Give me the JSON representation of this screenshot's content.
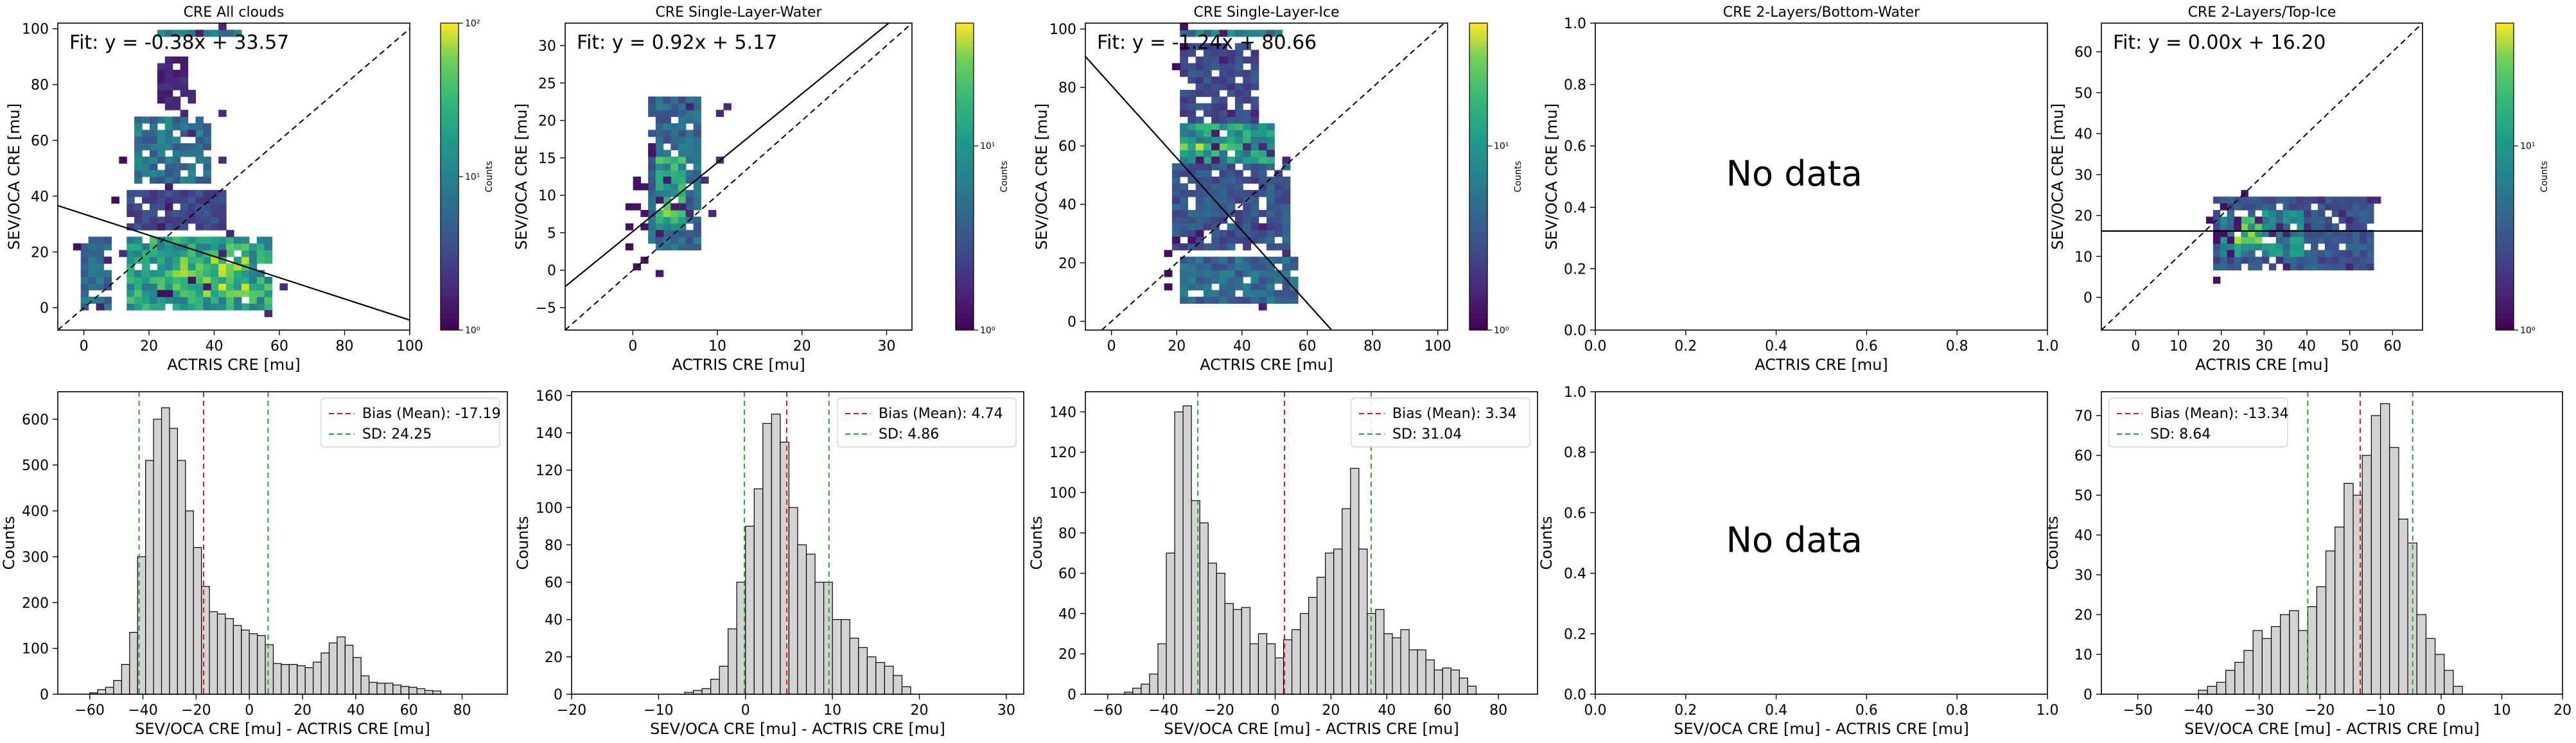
{
  "chart_data": [
    {
      "type": "heatmap",
      "title": "CRE All clouds",
      "xlabel": "ACTRIS CRE [mu]",
      "ylabel": "SEV/OCA CRE [mu]",
      "xlim": [
        -8,
        100
      ],
      "ylim": [
        -8,
        102
      ],
      "xticks": [
        0,
        20,
        40,
        60,
        80,
        100
      ],
      "yticks": [
        0,
        20,
        40,
        60,
        80,
        100
      ],
      "fit_label": "Fit: y = -0.38x + 33.57",
      "fit": {
        "slope": -0.38,
        "intercept": 33.57
      },
      "one_to_one": true,
      "colorbar": {
        "label": "Counts",
        "ticks": [
          "10⁰",
          "10¹",
          "10²"
        ],
        "scale": "log"
      },
      "density_blobs": [
        {
          "x": [
            -1,
            9
          ],
          "y": [
            0,
            25
          ],
          "level": 0.5
        },
        {
          "x": [
            13,
            58
          ],
          "y": [
            0,
            25
          ],
          "level": 0.8
        },
        {
          "x": [
            27,
            50
          ],
          "y": [
            5,
            18
          ],
          "level": 1.0
        },
        {
          "x": [
            15,
            40
          ],
          "y": [
            45,
            68
          ],
          "level": 0.55
        },
        {
          "x": [
            12,
            44
          ],
          "y": [
            29,
            43
          ],
          "level": 0.35
        },
        {
          "x": [
            22,
            32
          ],
          "y": [
            72,
            90
          ],
          "level": 0.2
        },
        {
          "x": [
            22,
            48
          ],
          "y": [
            98,
            100
          ],
          "level": 0.6
        }
      ]
    },
    {
      "type": "heatmap",
      "title": "CRE Single-Layer-Water",
      "xlabel": "ACTRIS CRE [mu]",
      "ylabel": "SEV/OCA CRE [mu]",
      "xlim": [
        -8,
        33
      ],
      "ylim": [
        -8,
        33
      ],
      "xticks": [
        0,
        10,
        20,
        30
      ],
      "yticks": [
        -5,
        0,
        5,
        10,
        15,
        20,
        25,
        30
      ],
      "fit_label": "Fit: y = 0.92x + 5.17",
      "fit": {
        "slope": 0.92,
        "intercept": 5.17
      },
      "one_to_one": true,
      "colorbar": {
        "label": "Counts",
        "ticks": [
          "10⁰",
          "10¹"
        ],
        "scale": "log"
      },
      "density_blobs": [
        {
          "x": [
            2,
            8
          ],
          "y": [
            3,
            23
          ],
          "level": 0.5
        },
        {
          "x": [
            2.5,
            6.5
          ],
          "y": [
            5,
            15
          ],
          "level": 0.8
        },
        {
          "x": [
            2.5,
            4.5
          ],
          "y": [
            6,
            10
          ],
          "level": 1.0
        }
      ]
    },
    {
      "type": "heatmap",
      "title": "CRE Single-Layer-Ice",
      "xlabel": "ACTRIS CRE [mu]",
      "ylabel": "SEV/OCA CRE [mu]",
      "xlim": [
        -8,
        103
      ],
      "ylim": [
        -3,
        102
      ],
      "xticks": [
        0,
        20,
        40,
        60,
        80,
        100
      ],
      "yticks": [
        0,
        20,
        40,
        60,
        80,
        100
      ],
      "fit_label": "Fit: y = -1.24x + 80.66",
      "fit": {
        "slope": -1.24,
        "intercept": 80.66
      },
      "one_to_one": true,
      "colorbar": {
        "label": "Counts",
        "ticks": [
          "10⁰",
          "10¹"
        ],
        "scale": "log"
      },
      "density_blobs": [
        {
          "x": [
            20,
            58
          ],
          "y": [
            5,
            22
          ],
          "level": 0.5
        },
        {
          "x": [
            18,
            55
          ],
          "y": [
            25,
            55
          ],
          "level": 0.4
        },
        {
          "x": [
            22,
            50
          ],
          "y": [
            55,
            68
          ],
          "level": 0.75
        },
        {
          "x": [
            22,
            40
          ],
          "y": [
            58,
            62
          ],
          "level": 1.0
        },
        {
          "x": [
            22,
            44
          ],
          "y": [
            68,
            95
          ],
          "level": 0.35
        },
        {
          "x": [
            22,
            52
          ],
          "y": [
            98,
            100
          ],
          "level": 0.6
        }
      ]
    },
    {
      "type": "heatmap",
      "title": "CRE 2-Layers/Bottom-Water",
      "xlabel": "ACTRIS CRE [mu]",
      "ylabel": "SEV/OCA CRE [mu]",
      "xlim": [
        0,
        1
      ],
      "ylim": [
        0,
        1
      ],
      "xticks": [
        0.0,
        0.2,
        0.4,
        0.6,
        0.8,
        1.0
      ],
      "yticks": [
        0.0,
        0.2,
        0.4,
        0.6,
        0.8,
        1.0
      ],
      "message": "No data"
    },
    {
      "type": "heatmap",
      "title": "CRE 2-Layers/Top-Ice",
      "xlabel": "ACTRIS CRE [mu]",
      "ylabel": "SEV/OCA CRE [mu]",
      "xlim": [
        -8,
        67
      ],
      "ylim": [
        -8,
        67
      ],
      "xticks": [
        0,
        10,
        20,
        30,
        40,
        50,
        60
      ],
      "yticks": [
        0,
        10,
        20,
        30,
        40,
        50,
        60
      ],
      "fit_label": "Fit: y = 0.00x + 16.20",
      "fit": {
        "slope": 0.0,
        "intercept": 16.2
      },
      "one_to_one": true,
      "colorbar": {
        "label": "Counts",
        "ticks": [
          "10⁰",
          "10¹"
        ],
        "scale": "log"
      },
      "density_blobs": [
        {
          "x": [
            18,
            55
          ],
          "y": [
            6,
            25
          ],
          "level": 0.4
        },
        {
          "x": [
            20,
            40
          ],
          "y": [
            10,
            21
          ],
          "level": 0.65
        },
        {
          "x": [
            23,
            30
          ],
          "y": [
            13,
            19
          ],
          "level": 0.95
        }
      ]
    },
    {
      "type": "bar",
      "xlabel": "SEV/OCA CRE [mu] - ACTRIS CRE [mu]",
      "ylabel": "Counts",
      "xlim": [
        -72,
        97
      ],
      "ylim": [
        0,
        660
      ],
      "xticks": [
        -60,
        -40,
        -20,
        0,
        20,
        40,
        60,
        80
      ],
      "yticks": [
        0,
        100,
        200,
        300,
        400,
        500,
        600
      ],
      "bin_start": -60,
      "bin_width": 3,
      "values": [
        3,
        10,
        15,
        30,
        65,
        135,
        300,
        510,
        600,
        625,
        580,
        510,
        400,
        320,
        235,
        180,
        175,
        165,
        150,
        140,
        132,
        128,
        108,
        67,
        65,
        65,
        62,
        58,
        70,
        90,
        112,
        125,
        107,
        80,
        40,
        26,
        24,
        24,
        20,
        17,
        15,
        12,
        8,
        7
      ],
      "bias": -17.19,
      "sd": 24.25,
      "legend": [
        "Bias (Mean): -17.19",
        "SD: 24.25"
      ]
    },
    {
      "type": "bar",
      "xlabel": "SEV/OCA CRE [mu] - ACTRIS CRE [mu]",
      "ylabel": "Counts",
      "xlim": [
        -20,
        32
      ],
      "ylim": [
        0,
        162
      ],
      "xticks": [
        -20,
        -10,
        0,
        10,
        20,
        30
      ],
      "yticks": [
        0,
        20,
        40,
        60,
        80,
        100,
        120,
        140,
        160
      ],
      "bin_start": -7,
      "bin_width": 1,
      "values": [
        1,
        2,
        3,
        8,
        15,
        35,
        60,
        90,
        110,
        145,
        150,
        135,
        100,
        80,
        75,
        60,
        60,
        40,
        40,
        30,
        25,
        20,
        17,
        15,
        10,
        4
      ],
      "bias": 4.74,
      "sd": 4.86,
      "legend": [
        "Bias (Mean): 4.74",
        "SD: 4.86"
      ]
    },
    {
      "type": "bar",
      "xlabel": "SEV/OCA CRE [mu] - ACTRIS CRE [mu]",
      "ylabel": "Counts",
      "xlim": [
        -68,
        94
      ],
      "ylim": [
        0,
        150
      ],
      "xticks": [
        -60,
        -40,
        -20,
        0,
        20,
        40,
        60,
        80
      ],
      "yticks": [
        0,
        20,
        40,
        60,
        80,
        100,
        120,
        140
      ],
      "bin_start": -54,
      "bin_width": 3,
      "values": [
        1,
        3,
        5,
        10,
        25,
        70,
        140,
        143,
        96,
        85,
        65,
        60,
        45,
        42,
        43,
        25,
        30,
        25,
        18,
        27,
        32,
        40,
        48,
        58,
        70,
        72,
        92,
        112,
        72,
        40,
        42,
        30,
        28,
        32,
        22,
        22,
        17,
        12,
        13,
        12,
        8,
        4
      ],
      "bias": 3.34,
      "sd": 31.04,
      "legend": [
        "Bias (Mean): 3.34",
        "SD: 31.04"
      ]
    },
    {
      "type": "bar",
      "xlabel": "SEV/OCA CRE [mu] - ACTRIS CRE [mu]",
      "ylabel": "Counts",
      "xlim": [
        0,
        1
      ],
      "ylim": [
        0,
        1
      ],
      "xticks": [
        0.0,
        0.2,
        0.4,
        0.6,
        0.8,
        1.0
      ],
      "yticks": [
        0.0,
        0.2,
        0.4,
        0.6,
        0.8,
        1.0
      ],
      "message": "No data"
    },
    {
      "type": "bar",
      "xlabel": "SEV/OCA CRE [mu] - ACTRIS CRE [mu]",
      "ylabel": "Counts",
      "xlim": [
        -56,
        20
      ],
      "ylim": [
        0,
        76
      ],
      "xticks": [
        -50,
        -40,
        -30,
        -20,
        -10,
        0,
        10,
        20
      ],
      "yticks": [
        0,
        10,
        20,
        30,
        40,
        50,
        60,
        70
      ],
      "bin_start": -40,
      "bin_width": 1.5,
      "values": [
        1,
        2,
        3,
        6,
        8,
        11,
        16,
        14,
        17,
        20,
        21,
        16,
        22,
        27,
        36,
        42,
        53,
        50,
        60,
        70,
        73,
        62,
        44,
        38,
        20,
        14,
        10,
        6,
        2
      ],
      "bias": -13.34,
      "sd": 8.64,
      "legend": [
        "Bias (Mean): -13.34",
        "SD: 8.64"
      ]
    }
  ]
}
